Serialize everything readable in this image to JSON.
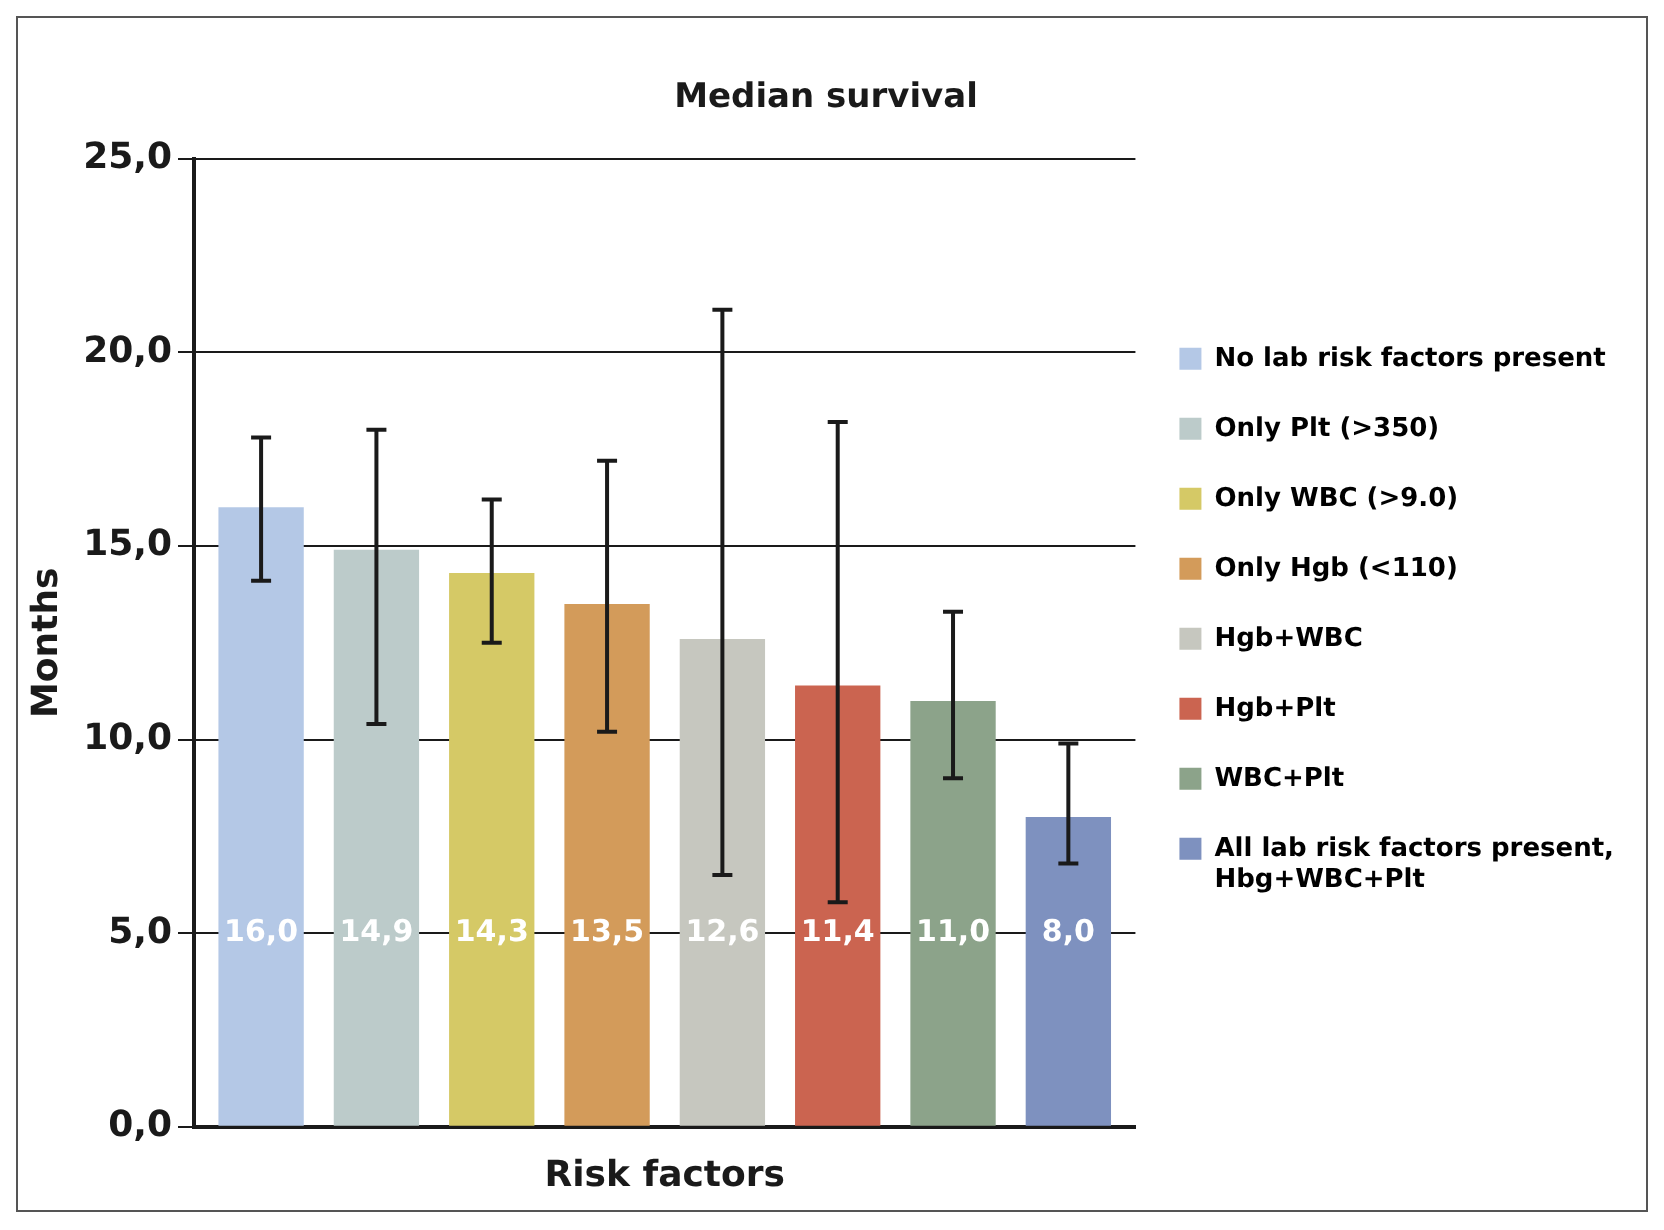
{
  "chart_data": {
    "type": "bar",
    "title": "Median survival",
    "xlabel": "Risk factors",
    "ylabel": "Months",
    "categories": [
      null
    ],
    "series": [
      {
        "name": "No lab risk factors present",
        "color": "#b4c8e6",
        "values": [
          16.0
        ],
        "errors": [
          [
            14.1,
            17.8
          ]
        ],
        "value_labels": [
          "16,0"
        ]
      },
      {
        "name": "Only Plt (>350)",
        "color": "#bccbca",
        "values": [
          14.9
        ],
        "errors": [
          [
            10.4,
            18.0
          ]
        ],
        "value_labels": [
          "14,9"
        ]
      },
      {
        "name": "Only WBC (>9.0)",
        "color": "#d5c966",
        "values": [
          14.3
        ],
        "errors": [
          [
            12.5,
            16.2
          ]
        ],
        "value_labels": [
          "14,3"
        ]
      },
      {
        "name": "Only Hgb (<110)",
        "color": "#d39b5a",
        "values": [
          13.5
        ],
        "errors": [
          [
            10.2,
            17.2
          ]
        ],
        "value_labels": [
          "13,5"
        ]
      },
      {
        "name": "Hgb+WBC",
        "color": "#c6c7bf",
        "values": [
          12.6
        ],
        "errors": [
          [
            6.5,
            21.1
          ]
        ],
        "value_labels": [
          "12,6"
        ]
      },
      {
        "name": "Hgb+Plt",
        "color": "#cb6450",
        "values": [
          11.4
        ],
        "errors": [
          [
            5.8,
            18.2
          ]
        ],
        "value_labels": [
          "11,4"
        ]
      },
      {
        "name": "WBC+Plt",
        "color": "#8ca38a",
        "values": [
          11.0
        ],
        "errors": [
          [
            9.0,
            13.3
          ]
        ],
        "value_labels": [
          "11,0"
        ]
      },
      {
        "name": "All lab risk factors present, Hbg+WBC+Plt",
        "color": "#7e91bf",
        "values": [
          8.0
        ],
        "errors": [
          [
            6.8,
            9.9
          ]
        ],
        "value_labels": [
          "8,0"
        ]
      }
    ],
    "ylim": [
      0,
      25
    ],
    "yticks": [
      {
        "value": 0,
        "label": "0,0"
      },
      {
        "value": 5,
        "label": "5,0"
      },
      {
        "value": 10,
        "label": "10,0"
      },
      {
        "value": 15,
        "label": "15,0"
      },
      {
        "value": 20,
        "label": "20,0"
      },
      {
        "value": 25,
        "label": "25,0"
      }
    ],
    "grid": "y",
    "legend": "right",
    "tick_labels": "y"
  }
}
